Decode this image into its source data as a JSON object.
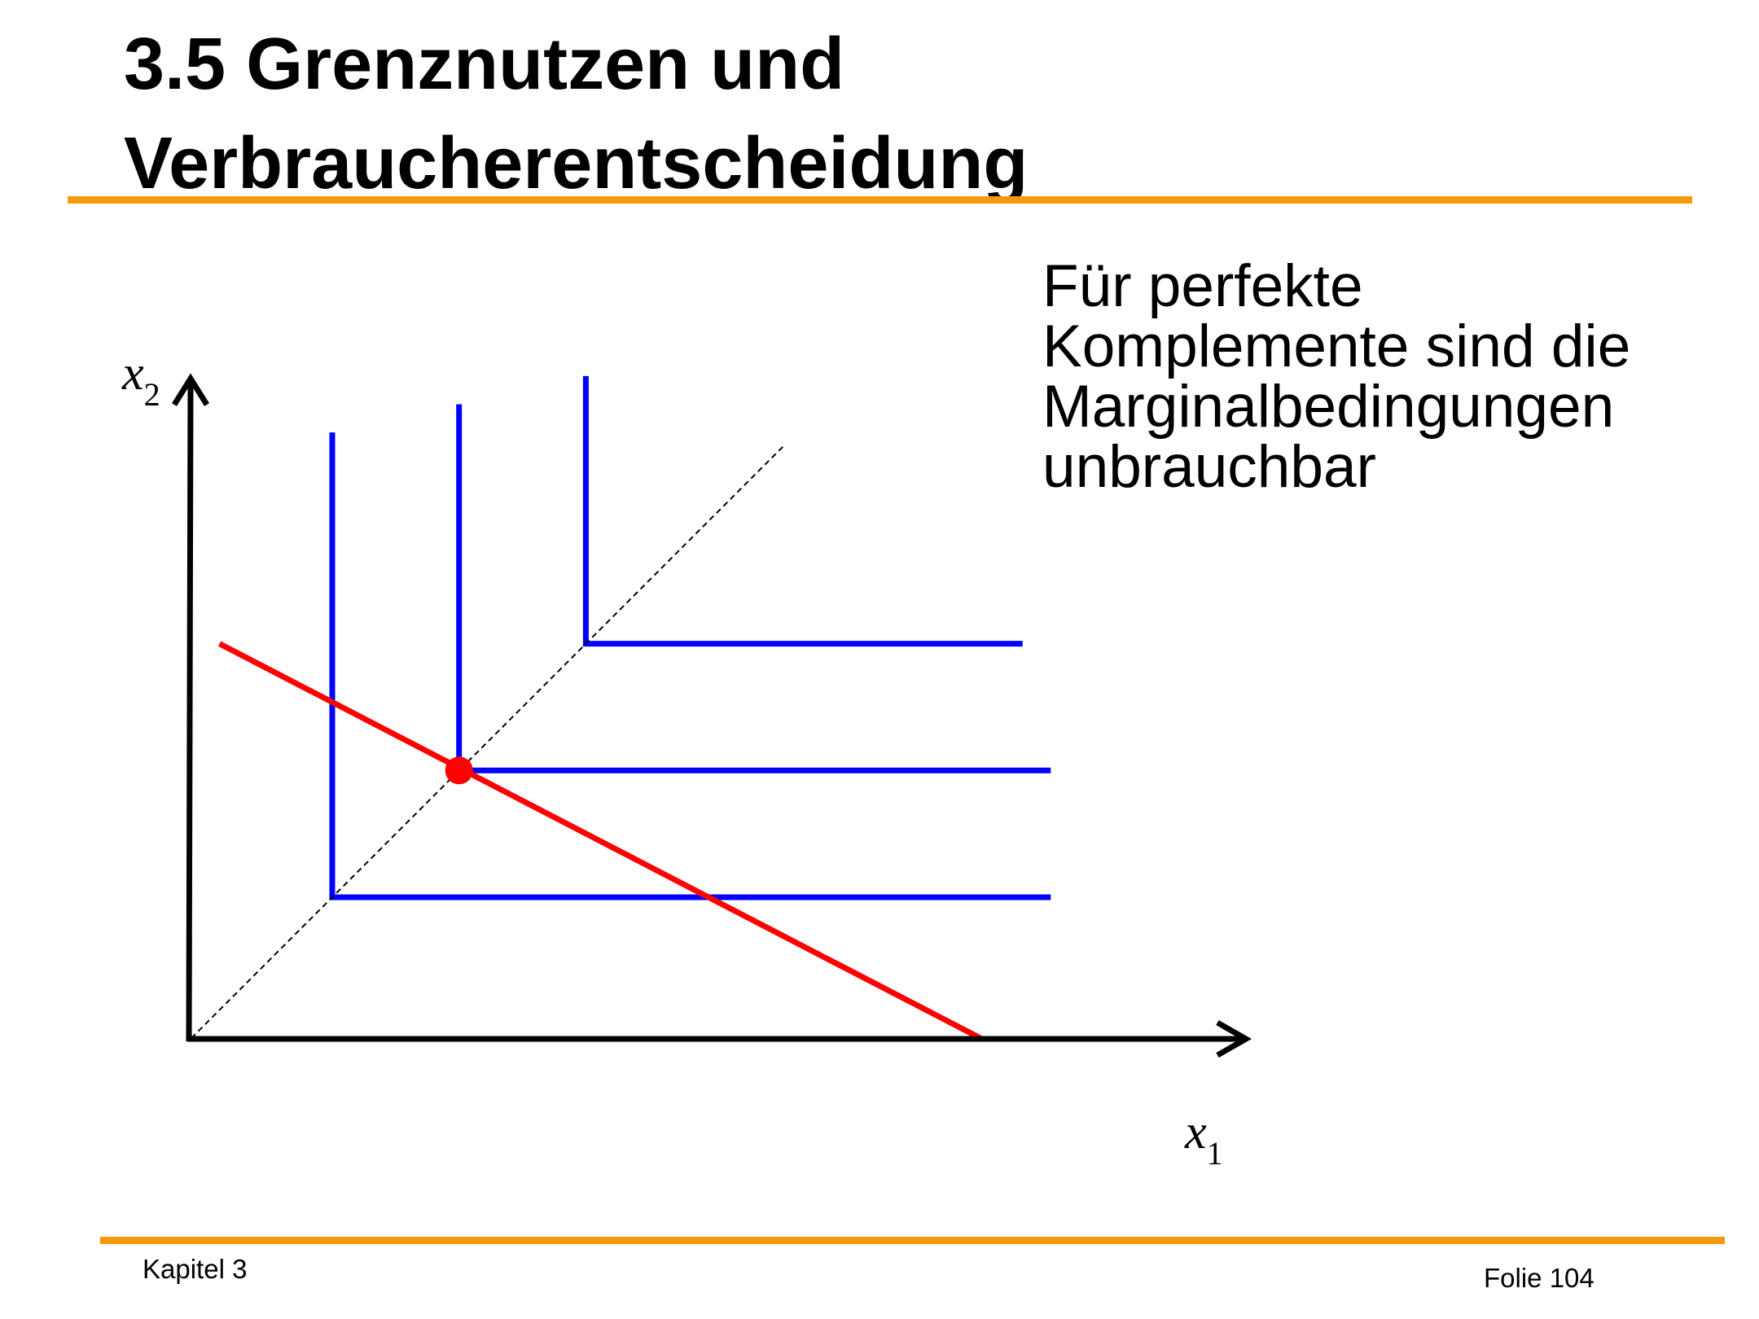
{
  "slide": {
    "title_lines": [
      "3.5 Grenznutzen und",
      "Verbraucherentscheidung"
    ],
    "note_lines": [
      "Für perfekte",
      "Komplemente sind die",
      "Marginalbedingungen",
      "unbrauchbar"
    ],
    "footer_left": "Kapitel 3",
    "footer_right": "Folie 104",
    "accent_color": "#F7990E"
  },
  "diagram": {
    "x_axis": {
      "var": "x",
      "sub": "1"
    },
    "y_axis": {
      "var": "x",
      "sub": "2"
    },
    "colors": {
      "axes": "#000000",
      "indifference_curves": "#0000FF",
      "budget_line": "#FF0000",
      "optimum_point": "#FF0000",
      "diagonal": "#000000"
    },
    "indifference_curves": [
      {
        "corner": [
          1.0,
          1.0
        ],
        "x_end": 6.1,
        "y_end": 4.3
      },
      {
        "corner": [
          1.9,
          1.9
        ],
        "x_end": 6.1,
        "y_end": 4.5
      },
      {
        "corner": [
          2.8,
          2.8
        ],
        "x_end": 5.9,
        "y_end": 4.7
      }
    ],
    "budget_line": {
      "from": [
        0.2,
        2.8
      ],
      "to": [
        5.6,
        0.0
      ]
    },
    "optimum": [
      1.9,
      1.9
    ],
    "diagonal": {
      "from": [
        0.0,
        0.0
      ],
      "to": [
        4.2,
        4.2
      ],
      "style": "dashed"
    }
  }
}
